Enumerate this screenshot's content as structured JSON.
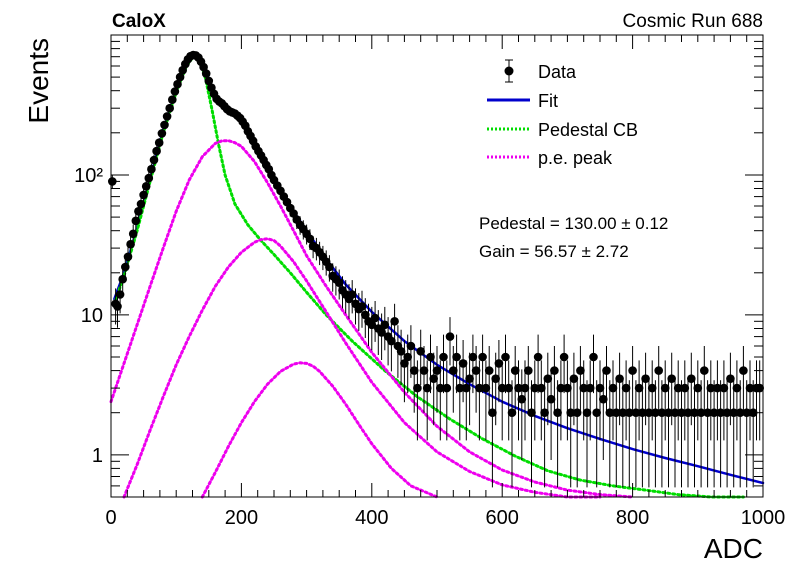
{
  "header": {
    "left": "CaloX",
    "right": "Cosmic Run 688"
  },
  "colors": {
    "data": "#000000",
    "fit": "#0000cc",
    "pedestal": "#00dd00",
    "pe": "#ee00ee"
  },
  "annotations": {
    "pedestal": "Pedestal = 130.00 ± 0.12",
    "gain": "Gain = 56.57 ± 2.72"
  },
  "chart_data": {
    "type": "line",
    "xlabel": "ADC",
    "ylabel": "Events",
    "xlim": [
      0,
      1000
    ],
    "ylim": [
      0.5,
      1000
    ],
    "yscale": "log",
    "xticks": [
      "0",
      "200",
      "400",
      "600",
      "800",
      "1000"
    ],
    "yticks": [
      {
        "value": 1,
        "label": "1"
      },
      {
        "value": 10,
        "label": "10"
      },
      {
        "value": 100,
        "label": "10²"
      }
    ],
    "legend": {
      "placement": "top-right",
      "entries": [
        {
          "label": "Data",
          "style": "marker"
        },
        {
          "label": "Fit",
          "style": "solid"
        },
        {
          "label": "Pedestal CB",
          "style": "dotted"
        },
        {
          "label": "p.e. peak",
          "style": "dotted"
        }
      ]
    },
    "data_points": [
      [
        2,
        90
      ],
      [
        7,
        12
      ],
      [
        10,
        11.5
      ],
      [
        14,
        14
      ],
      [
        18,
        18
      ],
      [
        22,
        22
      ],
      [
        26,
        26
      ],
      [
        30,
        32
      ],
      [
        34,
        38
      ],
      [
        38,
        47
      ],
      [
        42,
        55
      ],
      [
        46,
        62
      ],
      [
        50,
        72
      ],
      [
        54,
        83
      ],
      [
        58,
        95
      ],
      [
        62,
        110
      ],
      [
        66,
        128
      ],
      [
        70,
        148
      ],
      [
        74,
        170
      ],
      [
        78,
        198
      ],
      [
        82,
        228
      ],
      [
        86,
        262
      ],
      [
        90,
        300
      ],
      [
        94,
        345
      ],
      [
        98,
        395
      ],
      [
        102,
        445
      ],
      [
        106,
        500
      ],
      [
        110,
        560
      ],
      [
        114,
        620
      ],
      [
        118,
        670
      ],
      [
        122,
        705
      ],
      [
        126,
        720
      ],
      [
        130,
        715
      ],
      [
        134,
        690
      ],
      [
        138,
        645
      ],
      [
        142,
        590
      ],
      [
        146,
        530
      ],
      [
        150,
        470
      ],
      [
        154,
        420
      ],
      [
        158,
        380
      ],
      [
        162,
        350
      ],
      [
        166,
        335
      ],
      [
        170,
        325
      ],
      [
        174,
        310
      ],
      [
        178,
        295
      ],
      [
        182,
        285
      ],
      [
        186,
        280
      ],
      [
        190,
        275
      ],
      [
        194,
        265
      ],
      [
        198,
        255
      ],
      [
        202,
        240
      ],
      [
        206,
        225
      ],
      [
        210,
        205
      ],
      [
        214,
        190
      ],
      [
        218,
        175
      ],
      [
        222,
        160
      ],
      [
        226,
        148
      ],
      [
        230,
        138
      ],
      [
        234,
        128
      ],
      [
        238,
        118
      ],
      [
        242,
        110
      ],
      [
        246,
        100
      ],
      [
        250,
        92
      ],
      [
        255,
        84
      ],
      [
        260,
        77
      ],
      [
        265,
        70
      ],
      [
        270,
        64
      ],
      [
        275,
        58
      ],
      [
        280,
        53
      ],
      [
        285,
        48
      ],
      [
        290,
        44
      ],
      [
        295,
        41
      ],
      [
        300,
        38
      ],
      [
        305,
        35
      ],
      [
        310,
        31
      ],
      [
        315,
        30
      ],
      [
        320,
        28
      ],
      [
        325,
        26
      ],
      [
        330,
        24
      ],
      [
        335,
        22
      ],
      [
        340,
        19
      ],
      [
        345,
        18
      ],
      [
        350,
        17
      ],
      [
        355,
        15
      ],
      [
        360,
        14
      ],
      [
        365,
        13
      ],
      [
        370,
        14
      ],
      [
        375,
        12
      ],
      [
        380,
        11
      ],
      [
        385,
        11.5
      ],
      [
        390,
        10
      ],
      [
        395,
        9
      ],
      [
        400,
        8.5
      ],
      [
        405,
        9.5
      ],
      [
        410,
        8
      ],
      [
        415,
        7.5
      ],
      [
        420,
        8.5
      ],
      [
        425,
        7
      ],
      [
        430,
        6.5
      ],
      [
        435,
        9
      ],
      [
        440,
        6
      ],
      [
        445,
        5.5
      ],
      [
        450,
        4.5
      ],
      [
        455,
        5
      ],
      [
        460,
        6
      ],
      [
        465,
        4
      ],
      [
        470,
        3
      ],
      [
        475,
        5.5
      ],
      [
        480,
        4
      ],
      [
        485,
        3
      ],
      [
        490,
        5
      ],
      [
        495,
        3.5
      ],
      [
        500,
        4
      ],
      [
        505,
        3
      ],
      [
        510,
        5
      ],
      [
        515,
        3
      ],
      [
        520,
        7
      ],
      [
        525,
        4
      ],
      [
        530,
        5
      ],
      [
        535,
        3
      ],
      [
        540,
        4.5
      ],
      [
        545,
        3
      ],
      [
        550,
        3.5
      ],
      [
        555,
        5
      ],
      [
        560,
        4
      ],
      [
        565,
        3
      ],
      [
        570,
        5
      ],
      [
        575,
        3
      ],
      [
        580,
        4
      ],
      [
        585,
        2
      ],
      [
        590,
        3.5
      ],
      [
        595,
        4.5
      ],
      [
        600,
        3
      ],
      [
        605,
        5
      ],
      [
        610,
        3
      ],
      [
        615,
        2
      ],
      [
        620,
        4
      ],
      [
        625,
        3
      ],
      [
        630,
        2.5
      ],
      [
        635,
        3
      ],
      [
        640,
        4
      ],
      [
        645,
        2
      ],
      [
        650,
        3
      ],
      [
        655,
        5
      ],
      [
        660,
        3
      ],
      [
        665,
        2
      ],
      [
        670,
        3.5
      ],
      [
        675,
        2.5
      ],
      [
        680,
        4
      ],
      [
        685,
        2
      ],
      [
        690,
        3
      ],
      [
        695,
        5
      ],
      [
        700,
        3
      ],
      [
        705,
        2
      ],
      [
        710,
        3.5
      ],
      [
        715,
        2
      ],
      [
        720,
        4
      ],
      [
        725,
        3
      ],
      [
        730,
        2
      ],
      [
        735,
        3
      ],
      [
        740,
        5
      ],
      [
        745,
        2
      ],
      [
        750,
        3
      ],
      [
        755,
        2.5
      ],
      [
        760,
        4
      ],
      [
        765,
        2
      ],
      [
        770,
        3
      ],
      [
        775,
        2
      ],
      [
        780,
        3.5
      ],
      [
        785,
        2
      ],
      [
        790,
        3
      ],
      [
        795,
        2
      ],
      [
        800,
        4
      ],
      [
        805,
        2
      ],
      [
        810,
        3
      ],
      [
        815,
        2
      ],
      [
        820,
        3.5
      ],
      [
        825,
        2
      ],
      [
        830,
        3
      ],
      [
        835,
        2
      ],
      [
        840,
        4
      ],
      [
        845,
        2
      ],
      [
        850,
        3
      ],
      [
        855,
        2
      ],
      [
        860,
        3.5
      ],
      [
        865,
        2
      ],
      [
        870,
        3
      ],
      [
        875,
        2
      ],
      [
        880,
        3
      ],
      [
        885,
        2
      ],
      [
        890,
        3.5
      ],
      [
        895,
        2
      ],
      [
        900,
        3
      ],
      [
        905,
        2
      ],
      [
        910,
        4
      ],
      [
        915,
        2
      ],
      [
        920,
        3
      ],
      [
        925,
        2
      ],
      [
        930,
        3
      ],
      [
        935,
        2
      ],
      [
        940,
        3
      ],
      [
        945,
        2
      ],
      [
        950,
        3.5
      ],
      [
        955,
        2
      ],
      [
        960,
        3
      ],
      [
        965,
        2
      ],
      [
        970,
        4
      ],
      [
        975,
        2
      ],
      [
        980,
        3
      ],
      [
        985,
        2
      ],
      [
        990,
        3
      ],
      [
        995,
        3
      ]
    ],
    "series": [
      {
        "name": "Fit",
        "x": [
          5,
          20,
          40,
          60,
          80,
          100,
          115,
          125,
          130,
          135,
          145,
          155,
          165,
          175,
          185,
          200,
          220,
          240,
          260,
          280,
          300,
          330,
          360,
          400,
          450,
          500,
          550,
          600,
          650,
          700,
          750,
          800,
          850,
          900,
          950,
          1000
        ],
        "y": [
          13,
          20,
          42,
          95,
          210,
          400,
          600,
          700,
          710,
          690,
          560,
          420,
          350,
          310,
          285,
          240,
          165,
          112,
          77,
          55,
          40,
          25,
          16.5,
          10.5,
          6.5,
          4.4,
          3.2,
          2.4,
          1.9,
          1.55,
          1.3,
          1.1,
          0.95,
          0.83,
          0.72,
          0.63
        ]
      },
      {
        "name": "Pedestal CB",
        "x": [
          5,
          20,
          40,
          60,
          80,
          100,
          115,
          125,
          130,
          135,
          145,
          155,
          165,
          175,
          190,
          210,
          230,
          250,
          275,
          300,
          330,
          370,
          420,
          470,
          520,
          570,
          620,
          670,
          720,
          770,
          820,
          870,
          920,
          970,
          1000
        ],
        "y": [
          12,
          19,
          40,
          90,
          200,
          390,
          590,
          690,
          700,
          670,
          490,
          290,
          165,
          100,
          62,
          44,
          34,
          27,
          20,
          14.5,
          10,
          6.5,
          4,
          2.6,
          1.8,
          1.3,
          0.98,
          0.77,
          0.66,
          0.6,
          0.56,
          0.52,
          0.5,
          0.48,
          0.47
        ]
      },
      {
        "name": "p.e. peak 1",
        "x": [
          0,
          20,
          40,
          60,
          80,
          100,
          120,
          140,
          160,
          170,
          180,
          190,
          200,
          220,
          240,
          260,
          280,
          300,
          330,
          360,
          400,
          450,
          500,
          550,
          600,
          650,
          700,
          750,
          800,
          850,
          900
        ],
        "y": [
          2.4,
          4.5,
          8.5,
          16,
          30,
          55,
          92,
          135,
          168,
          175,
          176,
          170,
          160,
          125,
          88,
          60,
          40,
          26.5,
          16,
          10,
          5.4,
          2.8,
          1.6,
          1.05,
          0.78,
          0.64,
          0.56,
          0.52,
          0.49,
          0.47,
          0.46
        ]
      },
      {
        "name": "p.e. peak 2",
        "x": [
          20,
          40,
          60,
          80,
          100,
          120,
          140,
          160,
          180,
          200,
          220,
          230,
          240,
          250,
          260,
          280,
          300,
          330,
          360,
          400,
          450,
          500,
          550,
          600,
          650,
          700,
          750,
          800
        ],
        "y": [
          0.5,
          0.85,
          1.5,
          2.6,
          4.4,
          7,
          10.8,
          16,
          22,
          28,
          33,
          34.5,
          35,
          34,
          31,
          24,
          17.5,
          10.5,
          6.3,
          3.3,
          1.7,
          1.05,
          0.76,
          0.61,
          0.54,
          0.5,
          0.48,
          0.47
        ]
      },
      {
        "name": "p.e. peak 3",
        "x": [
          140,
          160,
          180,
          200,
          220,
          240,
          260,
          280,
          290,
          300,
          310,
          320,
          340,
          360,
          380,
          400,
          430,
          460,
          500,
          550,
          600
        ],
        "y": [
          0.5,
          0.75,
          1.15,
          1.7,
          2.4,
          3.2,
          3.95,
          4.45,
          4.55,
          4.5,
          4.3,
          3.95,
          3.1,
          2.3,
          1.65,
          1.2,
          0.8,
          0.6,
          0.48,
          0.4,
          0.36
        ]
      }
    ]
  }
}
